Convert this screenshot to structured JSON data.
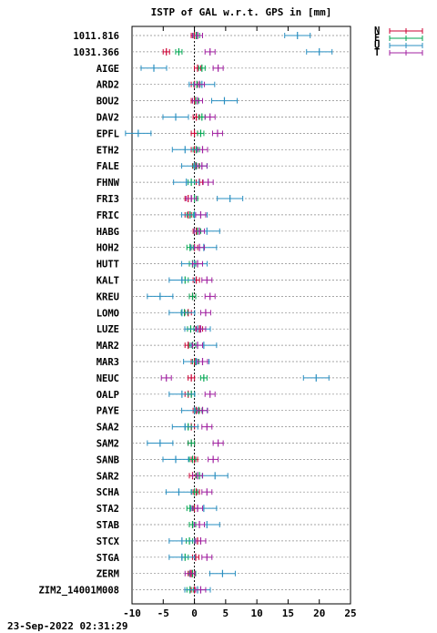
{
  "chart_data": {
    "type": "scatter",
    "title": "ISTP of GAL w.r.t. GPS in [mm]",
    "xlim": [
      -10,
      25
    ],
    "xticks": [
      -10,
      -5,
      0,
      5,
      10,
      15,
      20,
      25
    ],
    "grid": true,
    "legend_position": "top-right",
    "series": [
      {
        "name": "N",
        "color": "#cc0033"
      },
      {
        "name": "E",
        "color": "#00a651"
      },
      {
        "name": "U",
        "color": "#2a8fc1"
      },
      {
        "name": "T",
        "color": "#a020a0"
      }
    ],
    "stations": [
      {
        "name": "1011.816",
        "N": 0.0,
        "E": 0.3,
        "U": 16.5,
        "T": 0.5
      },
      {
        "name": "1031.366",
        "N": -4.5,
        "E": -2.5,
        "U": 20.0,
        "T": 2.5
      },
      {
        "name": "AIGE",
        "N": 0.5,
        "E": 1.2,
        "U": -6.5,
        "T": 3.8
      },
      {
        "name": "ARD2",
        "N": 0.0,
        "E": 0.4,
        "U": 1.2,
        "T": 0.8
      },
      {
        "name": "BOU2",
        "N": 0.0,
        "E": 0.2,
        "U": 4.8,
        "T": 0.5
      },
      {
        "name": "DAV2",
        "N": 0.3,
        "E": 1.2,
        "U": -3.0,
        "T": 2.5
      },
      {
        "name": "EPFL",
        "N": 0.0,
        "E": 1.0,
        "U": -9.0,
        "T": 3.7
      },
      {
        "name": "ETH2",
        "N": 0.0,
        "E": 0.3,
        "U": -1.5,
        "T": 1.3
      },
      {
        "name": "FALE",
        "N": 0.2,
        "E": 0.3,
        "U": 0.0,
        "T": 1.2
      },
      {
        "name": "FHNW",
        "N": 0.8,
        "E": -0.5,
        "U": -1.3,
        "T": 2.2
      },
      {
        "name": "FRI3",
        "N": -1.0,
        "E": 0.0,
        "U": 5.7,
        "T": -0.5
      },
      {
        "name": "FRIC",
        "N": -1.0,
        "E": -0.7,
        "U": 0.0,
        "T": 1.0
      },
      {
        "name": "HABG",
        "N": 0.3,
        "E": 0.5,
        "U": 2.0,
        "T": 0.8
      },
      {
        "name": "HOH2",
        "N": 0.0,
        "E": -0.7,
        "U": 1.5,
        "T": 0.8
      },
      {
        "name": "HUTT",
        "N": -0.3,
        "E": -0.3,
        "U": 0.0,
        "T": 0.5
      },
      {
        "name": "KALT",
        "N": 0.3,
        "E": -1.5,
        "U": -2.0,
        "T": 2.0
      },
      {
        "name": "KREU",
        "N": -0.3,
        "E": -0.3,
        "U": -5.5,
        "T": 2.5
      },
      {
        "name": "LOMO",
        "N": -1.0,
        "E": -1.6,
        "U": -2.0,
        "T": 1.8
      },
      {
        "name": "LUZE",
        "N": 0.8,
        "E": -0.6,
        "U": 0.5,
        "T": 1.0
      },
      {
        "name": "MAR2",
        "N": -1.0,
        "E": -0.3,
        "U": 1.5,
        "T": 0.5
      },
      {
        "name": "MAR3",
        "N": 0.0,
        "E": 0.2,
        "U": 0.3,
        "T": 1.3
      },
      {
        "name": "NEUC",
        "N": -0.5,
        "E": 1.5,
        "U": 19.5,
        "T": -4.5
      },
      {
        "name": "OALP",
        "N": -1.0,
        "E": -0.5,
        "U": -2.0,
        "T": 2.5
      },
      {
        "name": "PAYE",
        "N": 0.3,
        "E": 0.7,
        "U": 0.0,
        "T": 1.3
      },
      {
        "name": "SAA2",
        "N": -0.5,
        "E": -1.0,
        "U": -1.5,
        "T": 2.0
      },
      {
        "name": "SAM2",
        "N": -0.5,
        "E": -0.5,
        "U": -5.5,
        "T": 3.8
      },
      {
        "name": "SANB",
        "N": 0.0,
        "E": -0.3,
        "U": -3.0,
        "T": 3.0
      },
      {
        "name": "SAR2",
        "N": -0.3,
        "E": 0.8,
        "U": 3.3,
        "T": 0.5
      },
      {
        "name": "SCHA",
        "N": 0.3,
        "E": 0.0,
        "U": -2.5,
        "T": 2.0
      },
      {
        "name": "STA2",
        "N": 0.0,
        "E": -0.7,
        "U": 1.5,
        "T": 0.5
      },
      {
        "name": "STAB",
        "N": -0.3,
        "E": -0.3,
        "U": 2.0,
        "T": 0.8
      },
      {
        "name": "STCX",
        "N": 0.5,
        "E": -0.8,
        "U": -2.0,
        "T": 1.0
      },
      {
        "name": "STGA",
        "N": 0.2,
        "E": -1.5,
        "U": -2.0,
        "T": 2.0
      },
      {
        "name": "ZERM",
        "N": -0.5,
        "E": -0.3,
        "U": 4.5,
        "T": -0.7
      },
      {
        "name": "ZIM2_14001M008",
        "N": 0.0,
        "E": -0.7,
        "U": 0.5,
        "T": 1.0
      }
    ]
  },
  "footer": {
    "timestamp": "23-Sep-2022 02:31:29"
  }
}
